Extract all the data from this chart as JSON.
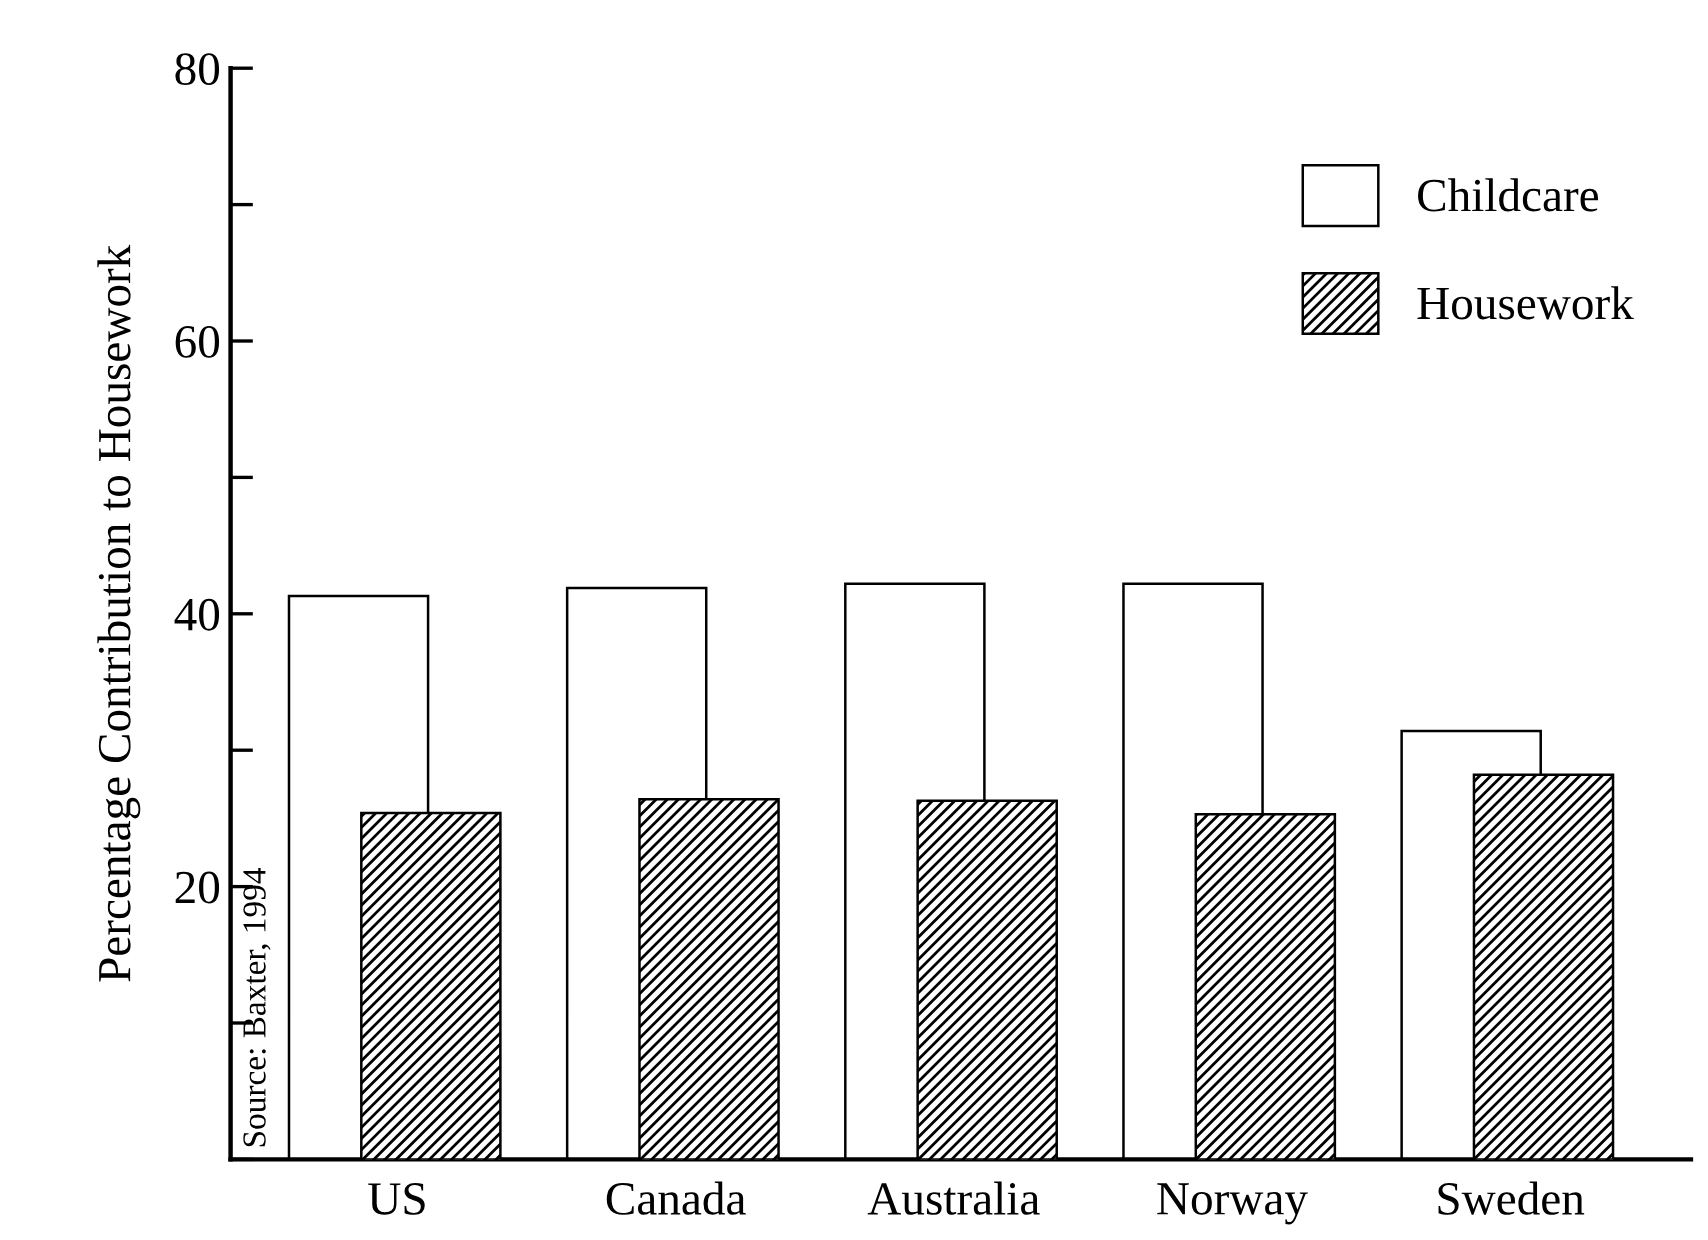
{
  "chart_data": {
    "type": "bar",
    "ylabel": "Percentage Contribution to Housework",
    "categories": [
      "US",
      "Canada",
      "Australia",
      "Norway",
      "Sweden"
    ],
    "series": [
      {
        "name": "Childcare",
        "color": "#ffffff",
        "values": [
          41.3,
          41.9,
          42.2,
          42.2,
          31.4
        ]
      },
      {
        "name": "Housework",
        "color": "#000000",
        "values": [
          25.4,
          26.4,
          26.3,
          25.3,
          28.2
        ]
      }
    ],
    "ylim": [
      0,
      80
    ],
    "yticks": [
      {
        "value": 0,
        "label": null
      },
      {
        "value": 10,
        "label": null
      },
      20,
      {
        "value": 30,
        "label": null
      },
      40,
      {
        "value": 50,
        "label": null
      },
      60,
      {
        "value": 70,
        "label": null
      },
      80
    ],
    "annotations": [
      "Source: Baxter, 1994"
    ],
    "legend": "top right",
    "grid": false
  }
}
